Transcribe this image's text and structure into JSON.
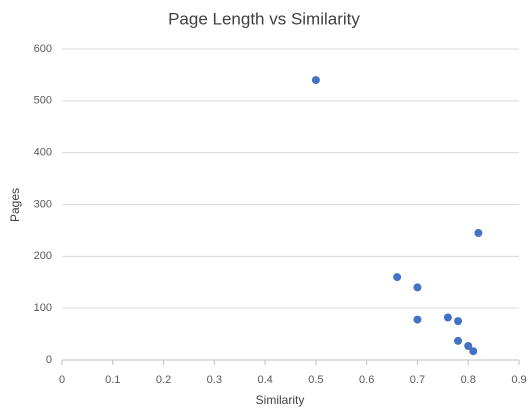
{
  "chart_data": {
    "type": "scatter",
    "title": "Page Length vs Similarity",
    "x_label": "Similarity",
    "y_label": "Pages",
    "x": [
      0.5,
      0.66,
      0.7,
      0.7,
      0.82,
      0.76,
      0.78,
      0.78,
      0.8,
      0.81
    ],
    "values": [
      540,
      160,
      140,
      78,
      245,
      82,
      75,
      37,
      27,
      17
    ],
    "color": "#4472c4",
    "xlim": [
      0,
      0.9
    ],
    "xticks": [
      0,
      0.1,
      0.2,
      0.3,
      0.4,
      0.5,
      0.6,
      0.7,
      0.8,
      0.9
    ],
    "ylim": [
      0,
      600
    ],
    "yticks": [
      0,
      100,
      200,
      300,
      400,
      500,
      600
    ],
    "grid": true
  }
}
